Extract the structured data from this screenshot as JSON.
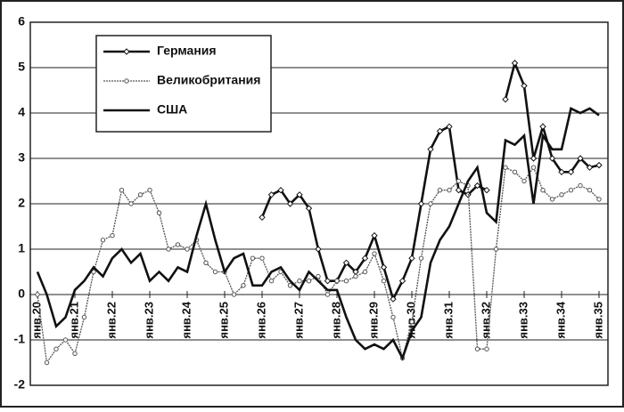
{
  "chart_data": {
    "type": "line",
    "x": [
      1920,
      1920.25,
      1920.5,
      1920.75,
      1921,
      1921.25,
      1921.5,
      1921.75,
      1922,
      1922.25,
      1922.5,
      1922.75,
      1923,
      1923.25,
      1923.5,
      1923.75,
      1924,
      1924.25,
      1924.5,
      1924.75,
      1925,
      1925.25,
      1925.5,
      1925.75,
      1926,
      1926.25,
      1926.5,
      1926.75,
      1927,
      1927.25,
      1927.5,
      1927.75,
      1928,
      1928.25,
      1928.5,
      1928.75,
      1929,
      1929.25,
      1929.5,
      1929.75,
      1930,
      1930.25,
      1930.5,
      1930.75,
      1931,
      1931.25,
      1931.5,
      1931.75,
      1932,
      1932.25,
      1932.5,
      1932.75,
      1933,
      1933.25,
      1933.5,
      1933.75,
      1934,
      1934.25,
      1934.5,
      1934.75,
      1935
    ],
    "series": [
      {
        "name": "Германия",
        "color": "#111111",
        "marker": "diamond",
        "values": [
          null,
          null,
          null,
          null,
          null,
          null,
          null,
          null,
          null,
          null,
          null,
          null,
          null,
          null,
          null,
          null,
          null,
          null,
          null,
          null,
          null,
          null,
          null,
          null,
          1.7,
          2.2,
          2.3,
          2.0,
          2.2,
          1.9,
          1.0,
          0.3,
          0.3,
          0.7,
          0.5,
          0.8,
          1.3,
          0.6,
          -0.1,
          0.3,
          0.8,
          2.0,
          3.2,
          3.6,
          3.7,
          2.3,
          2.2,
          2.4,
          2.3,
          null,
          4.3,
          5.1,
          4.6,
          3.0,
          3.7,
          3.0,
          2.7,
          2.7,
          3.0,
          2.8,
          2.85
        ]
      },
      {
        "name": "Великобритания",
        "color": "#555555",
        "marker": "circle",
        "values": [
          0.0,
          -1.5,
          -1.2,
          -1.0,
          -1.3,
          -0.5,
          0.5,
          1.2,
          1.3,
          2.3,
          2.0,
          2.2,
          2.3,
          1.8,
          1.0,
          1.1,
          1.0,
          1.2,
          0.7,
          0.5,
          0.5,
          0.0,
          0.2,
          0.8,
          0.8,
          0.3,
          0.5,
          0.2,
          0.3,
          0.3,
          0.4,
          0.0,
          0.3,
          0.3,
          0.4,
          0.5,
          0.9,
          0.3,
          -0.5,
          -1.4,
          -0.6,
          0.8,
          2.0,
          2.3,
          2.3,
          2.5,
          2.4,
          -1.2,
          -1.2,
          1.0,
          2.8,
          2.7,
          2.5,
          2.8,
          2.3,
          2.1,
          2.2,
          2.3,
          2.4,
          2.3,
          2.1
        ]
      },
      {
        "name": "США",
        "color": "#111111",
        "marker": "none",
        "values": [
          0.5,
          0.0,
          -0.7,
          -0.5,
          0.1,
          0.3,
          0.6,
          0.4,
          0.8,
          1.0,
          0.7,
          0.9,
          0.3,
          0.5,
          0.3,
          0.6,
          0.5,
          1.3,
          2.0,
          1.2,
          0.5,
          0.8,
          0.9,
          0.2,
          0.2,
          0.5,
          0.6,
          0.3,
          0.1,
          0.5,
          0.3,
          0.1,
          0.1,
          -0.5,
          -1.0,
          -1.2,
          -1.1,
          -1.2,
          -1.0,
          -1.4,
          -0.8,
          -0.5,
          0.7,
          1.2,
          1.5,
          2.0,
          2.5,
          2.8,
          1.8,
          1.6,
          3.4,
          3.3,
          3.5,
          2.0,
          3.5,
          3.2,
          3.2,
          4.1,
          4.0,
          4.1,
          3.95
        ]
      }
    ],
    "xlim": [
      1920,
      1935
    ],
    "xticks": [
      {
        "value": 1920,
        "label": "янв.20"
      },
      {
        "value": 1921,
        "label": "янв.21"
      },
      {
        "value": 1922,
        "label": "янв.22"
      },
      {
        "value": 1923,
        "label": "янв.23"
      },
      {
        "value": 1924,
        "label": "янв.24"
      },
      {
        "value": 1925,
        "label": "янв.25"
      },
      {
        "value": 1926,
        "label": "янв.26"
      },
      {
        "value": 1927,
        "label": "янв.27"
      },
      {
        "value": 1928,
        "label": "янв.28"
      },
      {
        "value": 1929,
        "label": "янв.29"
      },
      {
        "value": 1930,
        "label": "янв.30"
      },
      {
        "value": 1931,
        "label": "янв.31"
      },
      {
        "value": 1932,
        "label": "янв.32"
      },
      {
        "value": 1933,
        "label": "янв.33"
      },
      {
        "value": 1934,
        "label": "янв.34"
      },
      {
        "value": 1935,
        "label": "янв.35"
      }
    ],
    "ylim": [
      -2,
      6
    ],
    "yticks": [
      -2,
      -1,
      0,
      1,
      2,
      3,
      4,
      5,
      6
    ],
    "grid": true
  }
}
